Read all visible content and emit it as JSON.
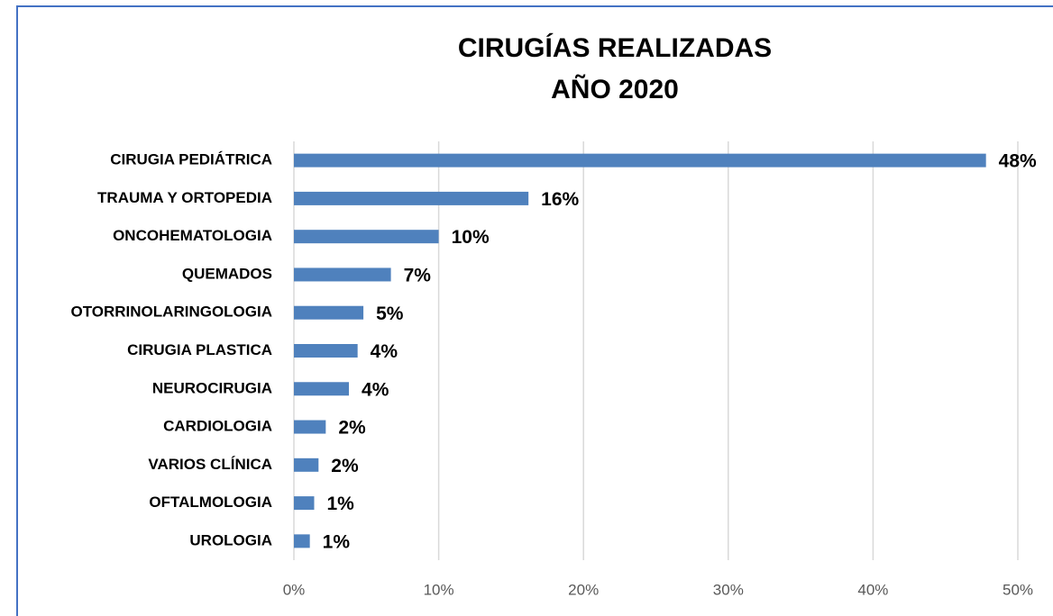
{
  "chart_data": {
    "type": "bar",
    "orientation": "horizontal",
    "title": [
      "CIRUGÍAS REALIZADAS",
      "AÑO 2020"
    ],
    "categories": [
      "CIRUGIA PEDIÁTRICA",
      "TRAUMA Y ORTOPEDIA",
      "ONCOHEMATOLOGIA",
      "QUEMADOS",
      "OTORRINOLARINGOLOGIA",
      "CIRUGIA PLASTICA",
      "NEUROCIRUGIA",
      "CARDIOLOGIA",
      "VARIOS CLÍNICA",
      "OFTALMOLOGIA",
      "UROLOGIA"
    ],
    "values": [
      47.8,
      16.2,
      10.0,
      6.7,
      4.8,
      4.4,
      3.8,
      2.2,
      1.7,
      1.4,
      1.1
    ],
    "value_labels": [
      "48%",
      "16%",
      "10%",
      "7%",
      "5%",
      "4%",
      "4%",
      "2%",
      "2%",
      "1%",
      "1%"
    ],
    "color": "#4f81bd",
    "xlim": [
      0,
      50
    ],
    "xticks": [
      {
        "value": 0,
        "label": "0%"
      },
      {
        "value": 10,
        "label": "10%"
      },
      {
        "value": 20,
        "label": "20%"
      },
      {
        "value": 30,
        "label": "30%"
      },
      {
        "value": 40,
        "label": "40%"
      },
      {
        "value": 50,
        "label": "50%"
      }
    ],
    "grid": true
  }
}
